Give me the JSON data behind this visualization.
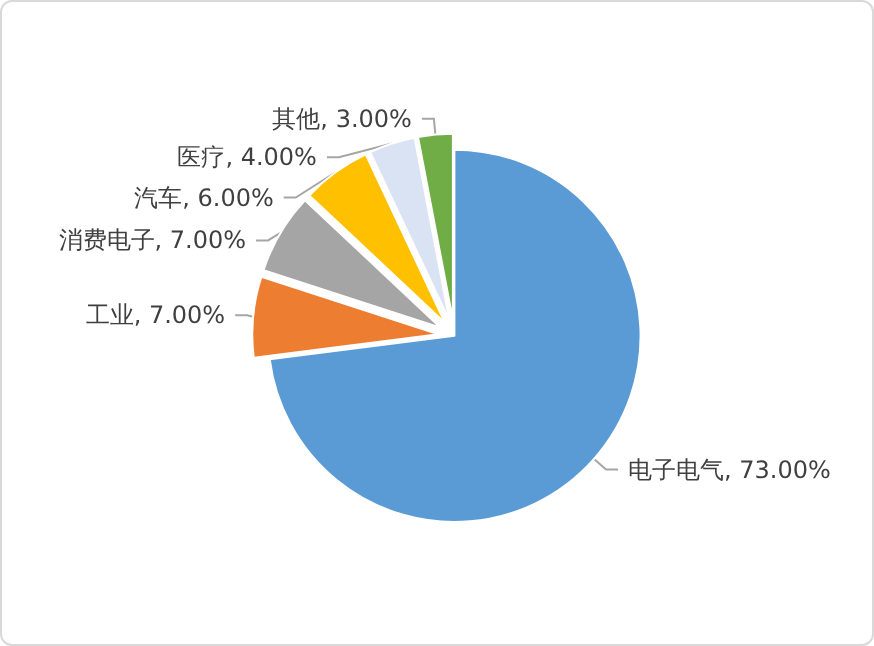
{
  "chart_data": {
    "type": "pie",
    "categories": [
      "电子电气",
      "工业",
      "消费电子",
      "汽车",
      "医疗",
      "其他"
    ],
    "values": [
      73,
      7,
      7,
      6,
      4,
      3
    ],
    "value_labels": [
      "73.00%",
      "7.00%",
      "7.00%",
      "6.00%",
      "4.00%",
      "3.00%"
    ],
    "colors": [
      "#5b9bd5",
      "#ed7d31",
      "#a5a5a5",
      "#ffc000",
      "#dae3f3",
      "#70ad47"
    ],
    "legend": false
  }
}
